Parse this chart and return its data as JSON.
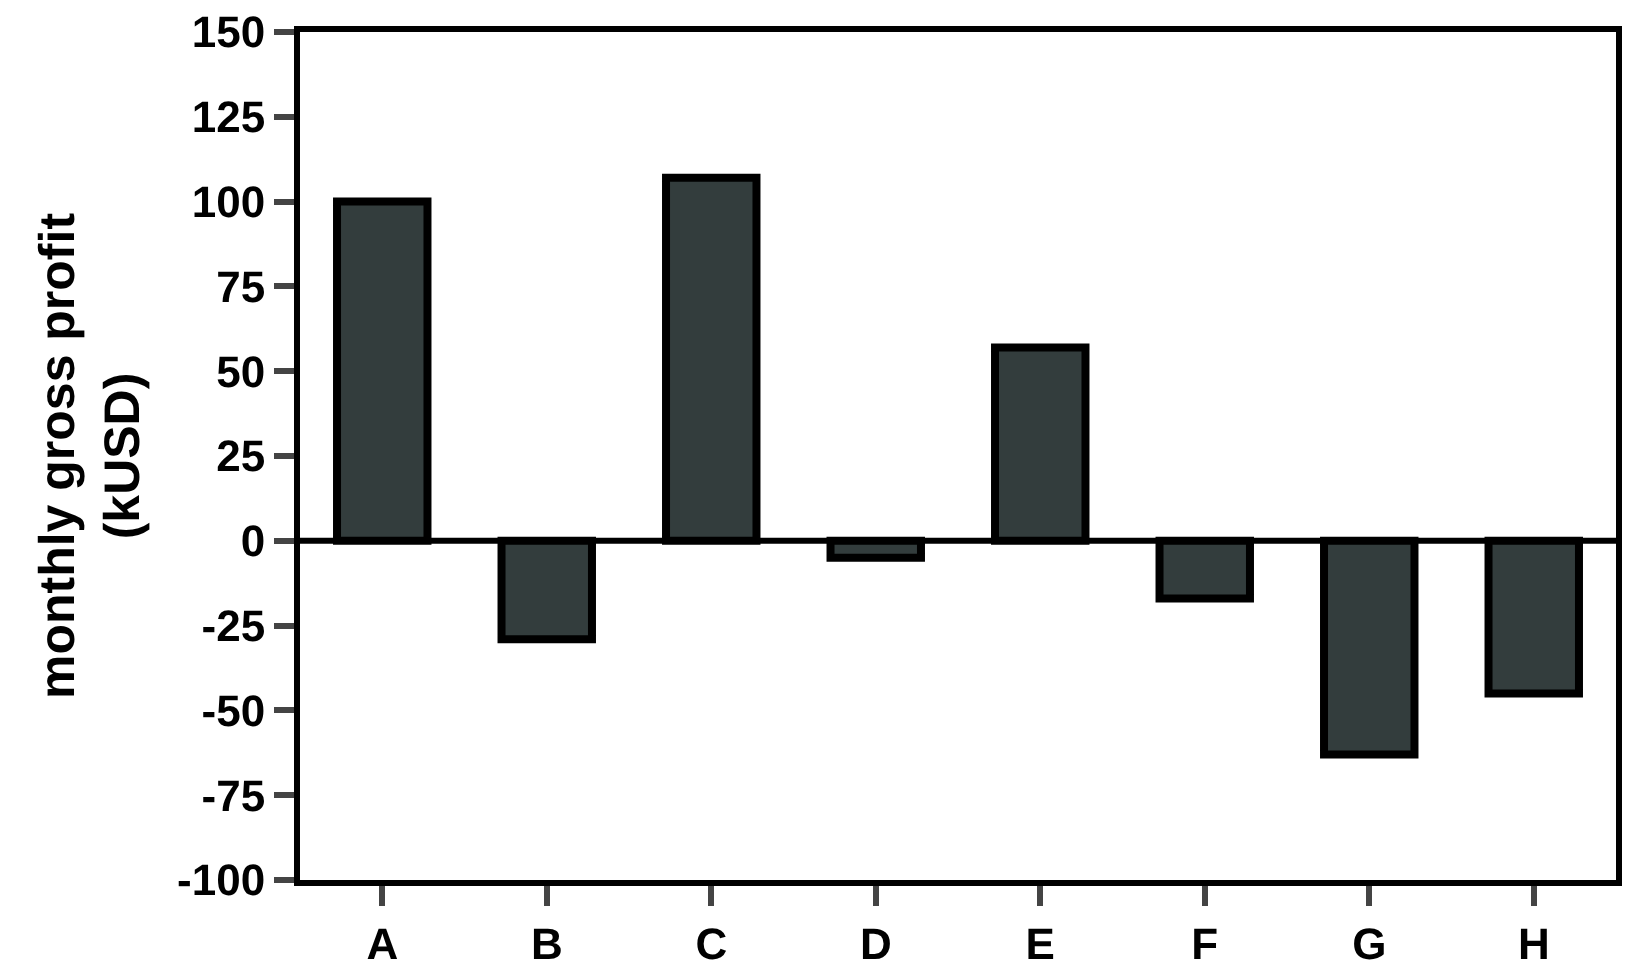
{
  "chart_data": {
    "type": "bar",
    "ylabel": "monthly gross profit\n(kUSD)",
    "categories": [
      "A",
      "B",
      "C",
      "D",
      "E",
      "F",
      "G",
      "H"
    ],
    "values": [
      100,
      -29,
      107,
      -5,
      57,
      -17,
      -63,
      -45
    ],
    "color": "#333d3d",
    "ylim": [
      -100,
      150
    ],
    "yticks": [
      -100,
      -75,
      -50,
      -25,
      0,
      25,
      50,
      75,
      100,
      125,
      150
    ],
    "ref_lines": [
      {
        "axis": "y",
        "value": 0,
        "color": "#000000"
      }
    ]
  }
}
